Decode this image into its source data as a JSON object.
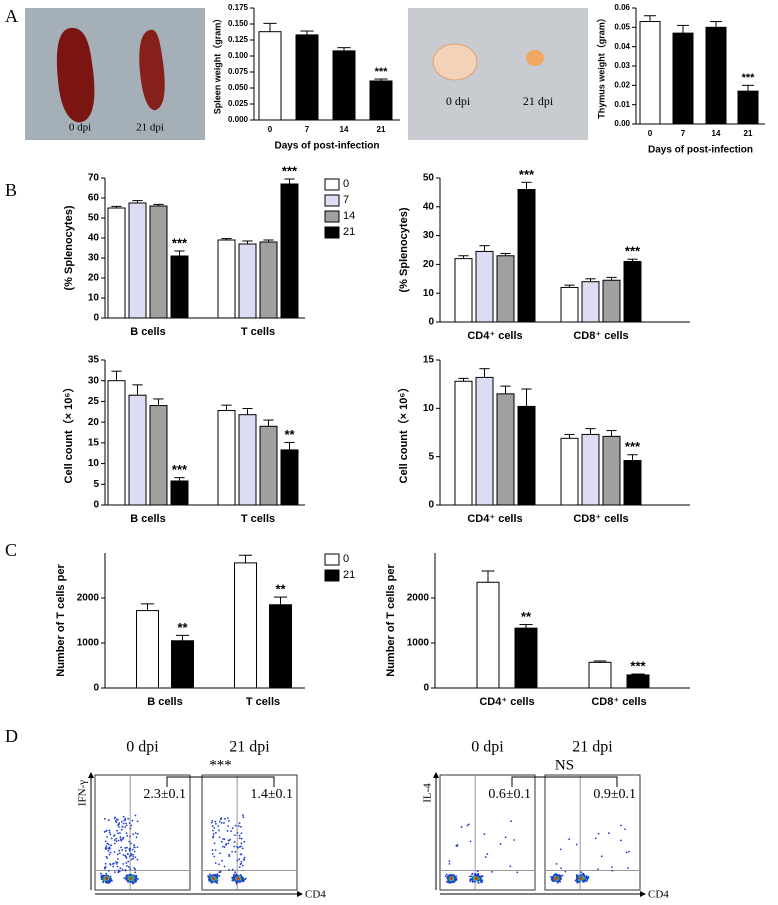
{
  "panels": [
    "A",
    "B",
    "C",
    "D"
  ],
  "photos": [
    {
      "labels": [
        "0 dpi",
        "21 dpi"
      ]
    },
    {
      "labels": [
        "0 dpi",
        "21 dpi"
      ]
    }
  ],
  "chart_data": [
    {
      "type": "bar",
      "y_label": "Spleen weight（gram）",
      "x_label": "Days of post-infection",
      "categories": [
        "0",
        "7",
        "14",
        "21"
      ],
      "values": [
        0.138,
        0.133,
        0.108,
        0.061
      ],
      "errors": [
        0.013,
        0.006,
        0.005,
        0.003
      ],
      "colors": [
        "#ffffff",
        "#000000",
        "#000000",
        "#000000"
      ],
      "significance": [
        null,
        null,
        null,
        "***"
      ],
      "ylim": [
        0,
        0.175
      ],
      "yticks": [
        {
          "value": 0,
          "label": "0.000"
        },
        {
          "value": 0.025,
          "label": "0.025"
        },
        {
          "value": 0.05,
          "label": "0.050"
        },
        {
          "value": 0.075,
          "label": "0.075"
        },
        {
          "value": 0.1,
          "label": "0.100"
        },
        {
          "value": 0.125,
          "label": "0.125"
        },
        {
          "value": 0.15,
          "label": "0.150"
        },
        {
          "value": 0.175,
          "label": "0.175"
        }
      ]
    },
    {
      "type": "bar",
      "y_label": "Thymus weight（gram）",
      "x_label": "Days of post-infection",
      "categories": [
        "0",
        "7",
        "14",
        "21"
      ],
      "values": [
        0.053,
        0.047,
        0.05,
        0.017
      ],
      "errors": [
        0.003,
        0.004,
        0.003,
        0.003
      ],
      "colors": [
        "#ffffff",
        "#000000",
        "#000000",
        "#000000"
      ],
      "significance": [
        null,
        null,
        null,
        "***"
      ],
      "ylim": [
        0,
        0.06
      ],
      "yticks": [
        {
          "value": 0,
          "label": "0.00"
        },
        {
          "value": 0.01,
          "label": "0.01"
        },
        {
          "value": 0.02,
          "label": "0.02"
        },
        {
          "value": 0.03,
          "label": "0.03"
        },
        {
          "value": 0.04,
          "label": "0.04"
        },
        {
          "value": 0.05,
          "label": "0.05"
        },
        {
          "value": 0.06,
          "label": "0.06"
        }
      ]
    },
    {
      "type": "bar",
      "y_label": "(% Splenocytes)",
      "categories": [
        "B cells",
        "T cells"
      ],
      "legend": "right",
      "series": [
        {
          "name": "0",
          "color": "#ffffff",
          "values": [
            55,
            39
          ],
          "errors": [
            0.8,
            0.7
          ]
        },
        {
          "name": "7",
          "color": "#dcdcf5",
          "values": [
            57.5,
            37
          ],
          "errors": [
            1.2,
            1.5
          ]
        },
        {
          "name": "14",
          "color": "#a0a0a0",
          "values": [
            56,
            38
          ],
          "errors": [
            0.8,
            1
          ]
        },
        {
          "name": "21",
          "color": "#000000",
          "values": [
            31,
            67
          ],
          "errors": [
            2.5,
            2.5
          ],
          "significance": [
            "***",
            "***"
          ]
        }
      ],
      "ylim": [
        0,
        70
      ],
      "yticks": [
        0,
        10,
        20,
        30,
        40,
        50,
        60,
        70
      ]
    },
    {
      "type": "bar",
      "y_label": "(% Splenocytes)",
      "categories": [
        "CD4⁺ cells",
        "CD8⁺ cells"
      ],
      "series": [
        {
          "name": "0",
          "color": "#ffffff",
          "values": [
            22,
            12
          ],
          "errors": [
            1,
            0.8
          ]
        },
        {
          "name": "7",
          "color": "#dcdcf5",
          "values": [
            24.5,
            14
          ],
          "errors": [
            2,
            1
          ]
        },
        {
          "name": "14",
          "color": "#a0a0a0",
          "values": [
            23,
            14.5
          ],
          "errors": [
            0.8,
            1
          ]
        },
        {
          "name": "21",
          "color": "#000000",
          "values": [
            46,
            21
          ],
          "errors": [
            2.5,
            0.8
          ],
          "significance": [
            "***",
            "***"
          ]
        }
      ],
      "ylim": [
        0,
        50
      ],
      "yticks": [
        0,
        10,
        20,
        30,
        40,
        50
      ]
    },
    {
      "type": "bar",
      "y_label": "Cell count（× 10⁶）",
      "categories": [
        "B cells",
        "T cells"
      ],
      "series": [
        {
          "name": "0",
          "color": "#ffffff",
          "values": [
            30,
            22.8
          ],
          "errors": [
            2.3,
            1.3
          ]
        },
        {
          "name": "7",
          "color": "#dcdcf5",
          "values": [
            26.5,
            21.8
          ],
          "errors": [
            2.5,
            1.5
          ]
        },
        {
          "name": "14",
          "color": "#a0a0a0",
          "values": [
            24,
            19
          ],
          "errors": [
            1.6,
            1.5
          ]
        },
        {
          "name": "21",
          "color": "#000000",
          "values": [
            5.8,
            13.3
          ],
          "errors": [
            0.8,
            1.8
          ],
          "significance": [
            "***",
            "**"
          ]
        }
      ],
      "ylim": [
        0,
        35
      ],
      "yticks": [
        0,
        5,
        10,
        15,
        20,
        25,
        30,
        35
      ]
    },
    {
      "type": "bar",
      "y_label": "Cell count（× 10⁶）",
      "categories": [
        "CD4⁺ cells",
        "CD8⁺ cells"
      ],
      "series": [
        {
          "name": "0",
          "color": "#ffffff",
          "values": [
            12.8,
            6.9
          ],
          "errors": [
            0.3,
            0.4
          ]
        },
        {
          "name": "7",
          "color": "#dcdcf5",
          "values": [
            13.2,
            7.3
          ],
          "errors": [
            0.9,
            0.6
          ]
        },
        {
          "name": "14",
          "color": "#a0a0a0",
          "values": [
            11.5,
            7.1
          ],
          "errors": [
            0.8,
            0.6
          ]
        },
        {
          "name": "21",
          "color": "#000000",
          "values": [
            10.2,
            4.6
          ],
          "errors": [
            1.8,
            0.6
          ],
          "significance": [
            null,
            "***"
          ]
        }
      ],
      "ylim": [
        0,
        15
      ],
      "yticks": [
        0,
        5,
        10,
        15
      ]
    },
    {
      "type": "bar",
      "y_label": "Number of T cells per",
      "categories": [
        "B cells",
        "T cells"
      ],
      "legend": "right",
      "series": [
        {
          "name": "0",
          "color": "#ffffff",
          "values": [
            1720,
            2780
          ],
          "errors": [
            150,
            170
          ]
        },
        {
          "name": "21",
          "color": "#000000",
          "values": [
            1050,
            1850
          ],
          "errors": [
            120,
            170
          ],
          "significance": [
            "**",
            "**"
          ]
        }
      ],
      "ylim": [
        0,
        3000
      ],
      "yticks": [
        0,
        1000,
        2000
      ]
    },
    {
      "type": "bar",
      "y_label": "Number of T cells per",
      "categories": [
        "CD4⁺ cells",
        "CD8⁺ cells"
      ],
      "series": [
        {
          "name": "0",
          "color": "#ffffff",
          "values": [
            2350,
            570
          ],
          "errors": [
            250,
            30
          ]
        },
        {
          "name": "21",
          "color": "#000000",
          "values": [
            1330,
            290
          ],
          "errors": [
            80,
            20
          ],
          "significance": [
            "**",
            "***"
          ]
        }
      ],
      "ylim": [
        0,
        3000
      ],
      "yticks": [
        0,
        1000,
        2000
      ]
    }
  ],
  "flow": [
    {
      "labels": [
        "0 dpi",
        "21 dpi"
      ],
      "significance": "***",
      "values": [
        "2.3±0.1",
        "1.4±0.1"
      ],
      "y_axis": "IFN-γ",
      "x_axis": "CD4"
    },
    {
      "labels": [
        "0 dpi",
        "21 dpi"
      ],
      "significance": "NS",
      "values": [
        "0.6±0.1",
        "0.9±0.1"
      ],
      "y_axis": "IL-4",
      "x_axis": "CD4"
    }
  ]
}
